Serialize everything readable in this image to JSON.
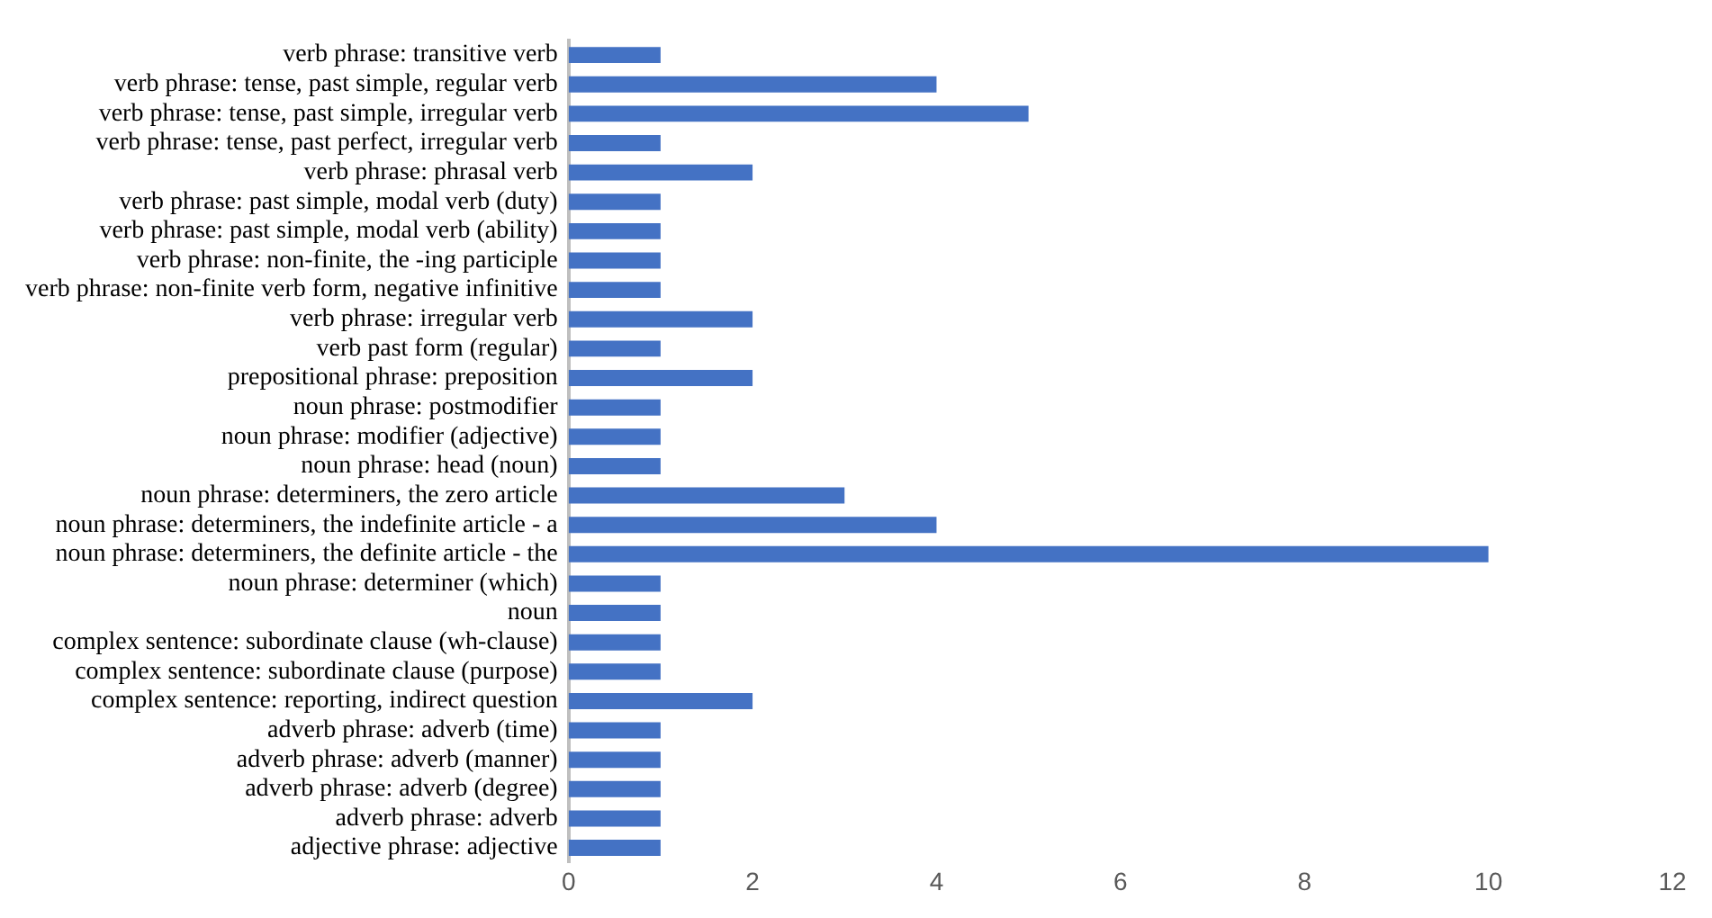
{
  "chart_data": {
    "type": "bar",
    "orientation": "horizontal",
    "categories": [
      "verb phrase: transitive verb",
      "verb phrase: tense, past simple, regular verb",
      "verb phrase: tense, past simple, irregular verb",
      "verb phrase: tense, past perfect, irregular verb",
      "verb phrase: phrasal verb",
      "verb phrase: past simple, modal verb (duty)",
      "verb phrase: past simple, modal verb (ability)",
      "verb phrase: non-finite, the -ing participle",
      "verb phrase: non-finite verb form, negative infinitive",
      "verb phrase: irregular verb",
      "verb past form (regular)",
      "prepositional phrase: preposition",
      "noun phrase: postmodifier",
      "noun phrase: modifier (adjective)",
      "noun phrase: head (noun)",
      "noun phrase: determiners, the zero article",
      "noun phrase: determiners, the indefinite article - a",
      "noun phrase: determiners, the definite article - the",
      "noun phrase: determiner (which)",
      "noun",
      "complex sentence: subordinate clause (wh-clause)",
      "complex sentence: subordinate clause (purpose)",
      "complex sentence: reporting, indirect question",
      "adverb phrase: adverb (time)",
      "adverb phrase: adverb (manner)",
      "adverb phrase: adverb (degree)",
      "adverb phrase: adverb",
      "adjective phrase: adjective"
    ],
    "values": [
      1,
      4,
      5,
      1,
      2,
      1,
      1,
      1,
      1,
      2,
      1,
      2,
      1,
      1,
      1,
      3,
      4,
      10,
      1,
      1,
      1,
      1,
      2,
      1,
      1,
      1,
      1,
      1
    ],
    "color": "#4472c4",
    "xlim": [
      0,
      12
    ],
    "xticks": [
      0,
      2,
      4,
      6,
      8,
      10,
      12
    ],
    "grid": false,
    "legend": false
  }
}
